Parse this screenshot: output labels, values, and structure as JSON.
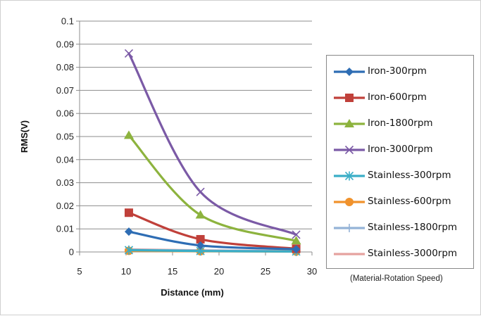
{
  "chart_data": {
    "type": "line",
    "title": "",
    "xlabel": "Distance (mm)",
    "ylabel": "RMS(V)",
    "xlim": [
      5,
      30
    ],
    "ylim": [
      0,
      0.1
    ],
    "xticks": [
      "5",
      "10",
      "15",
      "20",
      "25",
      "30"
    ],
    "yticks": [
      "0",
      "0.01",
      "0.02",
      "0.03",
      "0.04",
      "0.05",
      "0.06",
      "0.07",
      "0.08",
      "0.09",
      "0.1"
    ],
    "grid": "horizontal",
    "legend_position": "right",
    "x": [
      10.3,
      18,
      28.3
    ],
    "series": [
      {
        "name": "Iron-300rpm",
        "values": [
          0.0088,
          0.0028,
          0.0012
        ],
        "color": "#2e6db4",
        "marker": "diamond"
      },
      {
        "name": "Iron-600rpm",
        "values": [
          0.017,
          0.0055,
          0.0014
        ],
        "color": "#c0403a",
        "marker": "square"
      },
      {
        "name": "Iron-1800rpm",
        "values": [
          0.0505,
          0.016,
          0.0048
        ],
        "color": "#8db33e",
        "marker": "triangle"
      },
      {
        "name": "Iron-3000rpm",
        "values": [
          0.086,
          0.026,
          0.0075
        ],
        "color": "#7b5aa6",
        "marker": "x"
      },
      {
        "name": "Stainless-300rpm",
        "values": [
          0.0008,
          0.0004,
          0.0002
        ],
        "color": "#3aaec7",
        "marker": "star"
      },
      {
        "name": "Stainless-600rpm",
        "values": [
          0.0005,
          0.0003,
          0.0002
        ],
        "color": "#f0922c",
        "marker": "circle"
      },
      {
        "name": "Stainless-1800rpm",
        "values": [
          0.0009,
          0.0006,
          0.0003
        ],
        "color": "#95b3d7",
        "marker": "plus"
      },
      {
        "name": "Stainless-3000rpm",
        "values": [
          0.0011,
          0.0007,
          0.0004
        ],
        "color": "#e5a29f",
        "marker": "dash"
      }
    ],
    "annotation": "(Material-Rotation Speed)"
  }
}
